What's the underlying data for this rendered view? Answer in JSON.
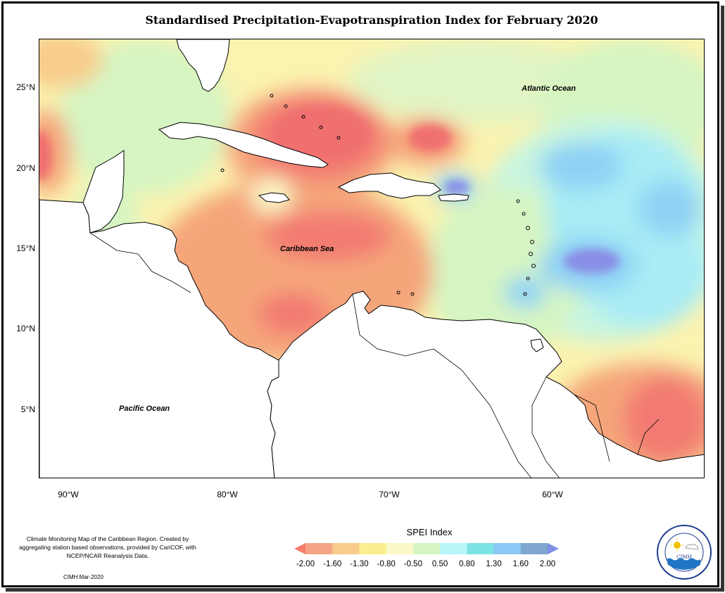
{
  "title": "Standardised Precipitation-Evapotranspiration Index for February 2020",
  "latitude_labels": [
    "25°N",
    "20°N",
    "15°N",
    "10°N",
    "5°N"
  ],
  "longitude_labels": [
    "90°W",
    "80°W",
    "70°W",
    "60°W"
  ],
  "ocean_labels": {
    "atlantic": "Atlantic Ocean",
    "caribbean": "Caribbean Sea",
    "pacific": "Pacific Ocean"
  },
  "legend": {
    "title": "SPEI Index",
    "ticks": [
      "-2.00",
      "-1.60",
      "-1.30",
      "-0.80",
      "-0.50",
      "0.50",
      "0.80",
      "1.30",
      "1.60",
      "2.00"
    ],
    "colors": [
      "#f47d6a",
      "#f5a584",
      "#f8cc8a",
      "#fbee8e",
      "#fbf8c8",
      "#d6f5c2",
      "#b8f5f8",
      "#7ee3e4",
      "#8cc7f5",
      "#7fa6cf",
      "#7e8fe6"
    ]
  },
  "notes": {
    "description": "Climate Monitoring Map of the Caribbean Region. Created by aggregating station based observations, provided by CariCOF, with NCEP/NCAR Reanalysis Data.",
    "credit": "CIMH Mar-2020"
  },
  "logo": {
    "name": "Caribbean Institute for Meteorology and Hydrology",
    "abbr": "CIMH"
  },
  "colors": {
    "dry_strong": "#f07070",
    "dry": "#f5a57a",
    "dry_mild": "#f8cc8a",
    "near_normal_dry": "#fbee8e",
    "normal": "#fbf8c8",
    "wet_mild": "#d6f5c2",
    "wet": "#b8f5f8",
    "wet_strong": "#8cc7f5",
    "wet_extreme": "#8a8fe6"
  }
}
